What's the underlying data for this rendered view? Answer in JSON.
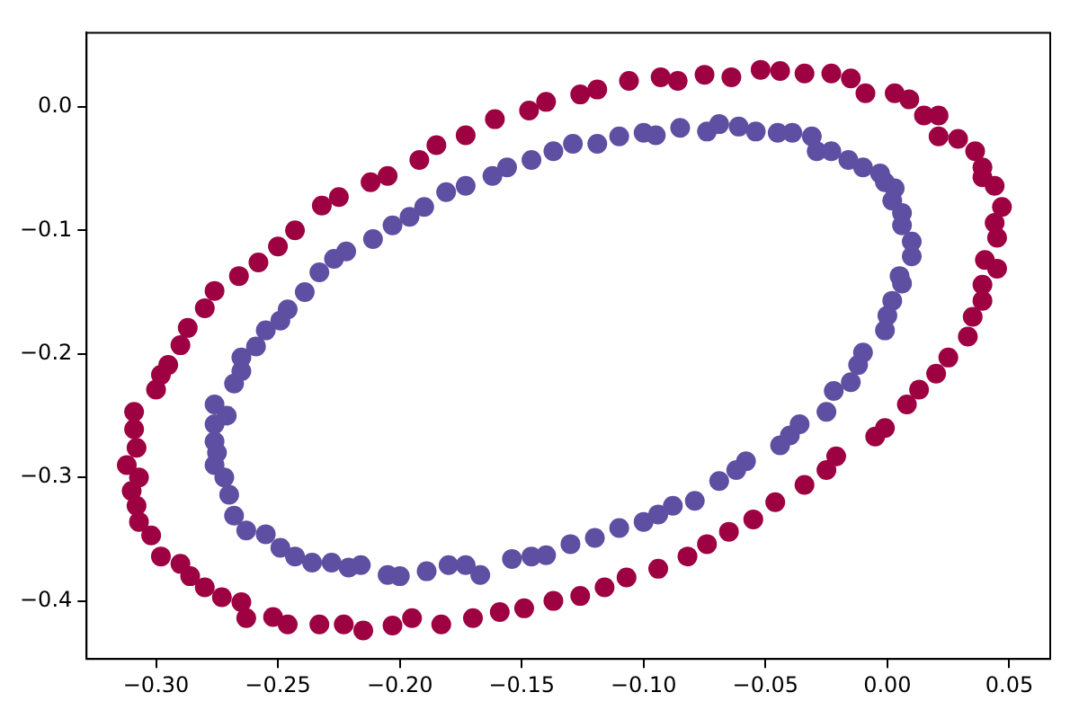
{
  "chart_data": {
    "type": "scatter",
    "marker": "circle",
    "grid": false,
    "legend": false,
    "xlim": [
      -0.3285,
      0.0668
    ],
    "ylim": [
      -0.447,
      0.06
    ],
    "xticks": [
      {
        "value": -0.3,
        "label": "−0.30"
      },
      {
        "value": -0.25,
        "label": "−0.25"
      },
      {
        "value": -0.2,
        "label": "−0.20"
      },
      {
        "value": -0.15,
        "label": "−0.15"
      },
      {
        "value": -0.1,
        "label": "−0.10"
      },
      {
        "value": -0.05,
        "label": "−0.05"
      },
      {
        "value": 0,
        "label": "0.00"
      },
      {
        "value": 0.05,
        "label": "0.05"
      }
    ],
    "yticks": [
      {
        "value": -0.4,
        "label": "−0.4"
      },
      {
        "value": -0.3,
        "label": "−0.3"
      },
      {
        "value": -0.2,
        "label": "−0.2"
      },
      {
        "value": -0.1,
        "label": "−0.1"
      },
      {
        "value": 0,
        "label": "0.0"
      }
    ],
    "series": [
      {
        "color": "#9e0142",
        "x": [
          -0.3,
          -0.298,
          -0.295,
          -0.29,
          -0.287,
          -0.28,
          -0.276,
          -0.266,
          -0.258,
          -0.25,
          -0.243,
          -0.232,
          -0.225,
          -0.212,
          -0.205,
          -0.192,
          -0.185,
          -0.173,
          -0.161,
          -0.147,
          -0.14,
          -0.126,
          -0.119,
          -0.106,
          -0.093,
          -0.086,
          -0.075,
          -0.064,
          -0.052,
          -0.044,
          -0.034,
          -0.023,
          -0.015,
          -0.009,
          0.003,
          0.009,
          0.015,
          0.021,
          0.021,
          0.029,
          0.036,
          0.039,
          0.039,
          0.044,
          0.047,
          0.044,
          0.045,
          0.04,
          0.045,
          0.039,
          0.039,
          0.035,
          0.033,
          0.025,
          0.02,
          0.013,
          0.008,
          -0.001,
          -0.005,
          -0.021,
          -0.025,
          -0.034,
          -0.046,
          -0.055,
          -0.065,
          -0.074,
          -0.082,
          -0.094,
          -0.107,
          -0.116,
          -0.126,
          -0.137,
          -0.149,
          -0.159,
          -0.17,
          -0.183,
          -0.195,
          -0.203,
          -0.215,
          -0.223,
          -0.233,
          -0.246,
          -0.252,
          -0.263,
          -0.265,
          -0.273,
          -0.28,
          -0.286,
          -0.29,
          -0.298,
          -0.302,
          -0.307,
          -0.308,
          -0.31,
          -0.307,
          -0.312,
          -0.308,
          -0.309,
          -0.309
        ],
        "values": [
          -0.229,
          -0.217,
          -0.209,
          -0.193,
          -0.179,
          -0.163,
          -0.149,
          -0.137,
          -0.126,
          -0.113,
          -0.1,
          -0.08,
          -0.073,
          -0.061,
          -0.056,
          -0.043,
          -0.031,
          -0.023,
          -0.01,
          -0.003,
          0.004,
          0.01,
          0.014,
          0.021,
          0.024,
          0.021,
          0.026,
          0.024,
          0.03,
          0.029,
          0.027,
          0.027,
          0.023,
          0.011,
          0.011,
          0.006,
          -0.007,
          -0.007,
          -0.024,
          -0.026,
          -0.036,
          -0.049,
          -0.057,
          -0.064,
          -0.081,
          -0.094,
          -0.106,
          -0.124,
          -0.131,
          -0.144,
          -0.157,
          -0.17,
          -0.186,
          -0.203,
          -0.216,
          -0.229,
          -0.241,
          -0.26,
          -0.267,
          -0.283,
          -0.294,
          -0.306,
          -0.32,
          -0.334,
          -0.344,
          -0.354,
          -0.364,
          -0.374,
          -0.381,
          -0.389,
          -0.396,
          -0.4,
          -0.406,
          -0.409,
          -0.414,
          -0.419,
          -0.414,
          -0.42,
          -0.424,
          -0.419,
          -0.419,
          -0.419,
          -0.413,
          -0.414,
          -0.401,
          -0.397,
          -0.389,
          -0.38,
          -0.37,
          -0.364,
          -0.347,
          -0.336,
          -0.323,
          -0.311,
          -0.3,
          -0.29,
          -0.276,
          -0.261,
          -0.247
        ]
      },
      {
        "color": "#5e4fa2",
        "x": [
          -0.268,
          -0.265,
          -0.265,
          -0.259,
          -0.255,
          -0.249,
          -0.246,
          -0.239,
          -0.233,
          -0.227,
          -0.222,
          -0.211,
          -0.203,
          -0.196,
          -0.19,
          -0.181,
          -0.173,
          -0.162,
          -0.156,
          -0.146,
          -0.137,
          -0.129,
          -0.119,
          -0.11,
          -0.1,
          -0.095,
          -0.085,
          -0.074,
          -0.069,
          -0.061,
          -0.054,
          -0.045,
          -0.039,
          -0.031,
          -0.029,
          -0.023,
          -0.016,
          -0.01,
          -0.003,
          -0.001,
          0.003,
          0.002,
          0.006,
          0.006,
          0.01,
          0.01,
          0.005,
          0.006,
          0.002,
          0.0,
          -0.001,
          -0.01,
          -0.012,
          -0.015,
          -0.022,
          -0.025,
          -0.036,
          -0.04,
          -0.044,
          -0.058,
          -0.062,
          -0.069,
          -0.079,
          -0.088,
          -0.094,
          -0.1,
          -0.11,
          -0.12,
          -0.13,
          -0.14,
          -0.146,
          -0.154,
          -0.167,
          -0.173,
          -0.18,
          -0.189,
          -0.2,
          -0.205,
          -0.216,
          -0.221,
          -0.228,
          -0.236,
          -0.243,
          -0.249,
          -0.255,
          -0.263,
          -0.268,
          -0.27,
          -0.272,
          -0.276,
          -0.275,
          -0.276,
          -0.276,
          -0.271,
          -0.276
        ],
        "values": [
          -0.224,
          -0.214,
          -0.203,
          -0.194,
          -0.181,
          -0.173,
          -0.164,
          -0.15,
          -0.134,
          -0.123,
          -0.117,
          -0.107,
          -0.096,
          -0.089,
          -0.081,
          -0.069,
          -0.064,
          -0.056,
          -0.049,
          -0.043,
          -0.036,
          -0.03,
          -0.03,
          -0.024,
          -0.021,
          -0.023,
          -0.017,
          -0.02,
          -0.014,
          -0.016,
          -0.02,
          -0.021,
          -0.021,
          -0.024,
          -0.036,
          -0.036,
          -0.043,
          -0.049,
          -0.054,
          -0.061,
          -0.066,
          -0.076,
          -0.086,
          -0.096,
          -0.109,
          -0.121,
          -0.137,
          -0.143,
          -0.157,
          -0.169,
          -0.181,
          -0.199,
          -0.209,
          -0.223,
          -0.23,
          -0.247,
          -0.257,
          -0.266,
          -0.274,
          -0.287,
          -0.294,
          -0.303,
          -0.319,
          -0.323,
          -0.33,
          -0.336,
          -0.341,
          -0.349,
          -0.354,
          -0.363,
          -0.364,
          -0.366,
          -0.379,
          -0.371,
          -0.371,
          -0.376,
          -0.38,
          -0.379,
          -0.371,
          -0.373,
          -0.369,
          -0.369,
          -0.364,
          -0.357,
          -0.346,
          -0.343,
          -0.331,
          -0.314,
          -0.3,
          -0.29,
          -0.28,
          -0.271,
          -0.257,
          -0.25,
          -0.241
        ]
      }
    ]
  }
}
